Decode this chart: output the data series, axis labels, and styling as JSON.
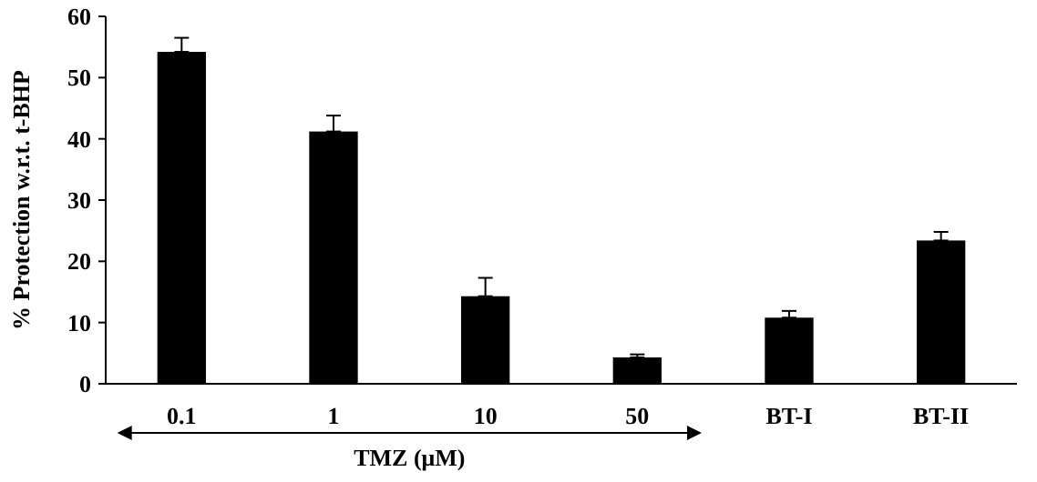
{
  "chart_data": {
    "type": "bar",
    "ylabel": "% Protection w.r.t. t-BHP",
    "categories": [
      "0.1",
      "1",
      "10",
      "50",
      "BT-I",
      "BT-II"
    ],
    "values": [
      54.2,
      41.2,
      14.3,
      4.3,
      10.8,
      23.4
    ],
    "errors": [
      [
        54.2,
        56.5
      ],
      [
        41.2,
        43.8
      ],
      [
        14.3,
        17.3
      ],
      [
        4.3,
        4.8
      ],
      [
        10.8,
        11.9
      ],
      [
        23.4,
        24.8
      ]
    ],
    "color": "#000000",
    "ylim": [
      0,
      60
    ],
    "yticks": [
      0,
      10,
      20,
      30,
      40,
      50,
      60
    ],
    "grid": false,
    "annotations": [
      "TMZ (μM)"
    ]
  }
}
